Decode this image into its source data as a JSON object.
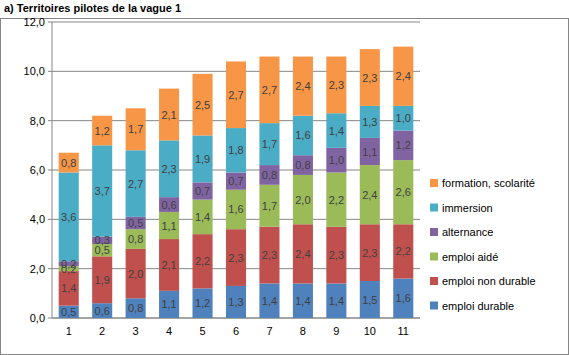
{
  "chart_data": {
    "type": "bar",
    "title": "a) Territoires pilotes de la vague 1",
    "stacked": true,
    "grid": true,
    "legend": "right",
    "data_labels": true,
    "categories": [
      "1",
      "2",
      "3",
      "4",
      "5",
      "6",
      "7",
      "8",
      "9",
      "10",
      "11"
    ],
    "ylim": [
      0,
      12
    ],
    "yticks": [
      {
        "value": 0,
        "label": "0,0"
      },
      {
        "value": 2,
        "label": "2,0"
      },
      {
        "value": 4,
        "label": "4,0"
      },
      {
        "value": 6,
        "label": "6,0"
      },
      {
        "value": 8,
        "label": "8,0"
      },
      {
        "value": 10,
        "label": "10,0"
      },
      {
        "value": 12,
        "label": "12,0"
      }
    ],
    "series": [
      {
        "name": "emploi durable",
        "color": "#4f81bd",
        "values": [
          0.5,
          0.6,
          0.8,
          1.1,
          1.2,
          1.3,
          1.4,
          1.4,
          1.4,
          1.5,
          1.6
        ],
        "value_labels": [
          "0,5",
          "0,6",
          "0,8",
          "1,1",
          "1,2",
          "1,3",
          "1,4",
          "1,4",
          "1,4",
          "1,5",
          "1,6"
        ]
      },
      {
        "name": "emploi non durable",
        "color": "#c0504d",
        "values": [
          1.4,
          1.9,
          2.0,
          2.1,
          2.2,
          2.3,
          2.3,
          2.4,
          2.3,
          2.3,
          2.2
        ],
        "value_labels": [
          "1,4",
          "1,9",
          "2,0",
          "2,1",
          "2,2",
          "2,3",
          "2,3",
          "2,4",
          "2,3",
          "2,3",
          "2,2"
        ]
      },
      {
        "name": "emploi aidé",
        "color": "#9bbb59",
        "values": [
          0.2,
          0.5,
          0.8,
          1.1,
          1.4,
          1.6,
          1.7,
          2.0,
          2.2,
          2.4,
          2.6
        ],
        "value_labels": [
          "0,2",
          "0,5",
          "0,8",
          "1,1",
          "1,4",
          "1,6",
          "1,7",
          "2,0",
          "2,2",
          "2,4",
          "2,6"
        ]
      },
      {
        "name": "alternance",
        "color": "#8064a2",
        "values": [
          0.2,
          0.3,
          0.5,
          0.6,
          0.7,
          0.7,
          0.8,
          0.8,
          1.0,
          1.1,
          1.2
        ],
        "value_labels": [
          "0,2",
          "0,3",
          "0,5",
          "0,6",
          "0,7",
          "0,7",
          "0,8",
          "0,8",
          "1,0",
          "1,1",
          "1,2"
        ]
      },
      {
        "name": "immersion",
        "color": "#4bacc6",
        "values": [
          3.6,
          3.7,
          2.7,
          2.3,
          1.9,
          1.8,
          1.7,
          1.6,
          1.4,
          1.3,
          1.0
        ],
        "value_labels": [
          "3,6",
          "3,7",
          "2,7",
          "2,3",
          "1,9",
          "1,8",
          "1,7",
          "1,6",
          "1,4",
          "1,3",
          "1,0"
        ]
      },
      {
        "name": "formation, scolarité",
        "color": "#f79646",
        "values": [
          0.8,
          1.2,
          1.7,
          2.1,
          2.5,
          2.7,
          2.7,
          2.4,
          2.3,
          2.3,
          2.4
        ],
        "value_labels": [
          "0,8",
          "1,2",
          "1,7",
          "2,1",
          "2,5",
          "2,7",
          "2,7",
          "2,4",
          "2,3",
          "2,3",
          "2,4"
        ]
      }
    ]
  }
}
